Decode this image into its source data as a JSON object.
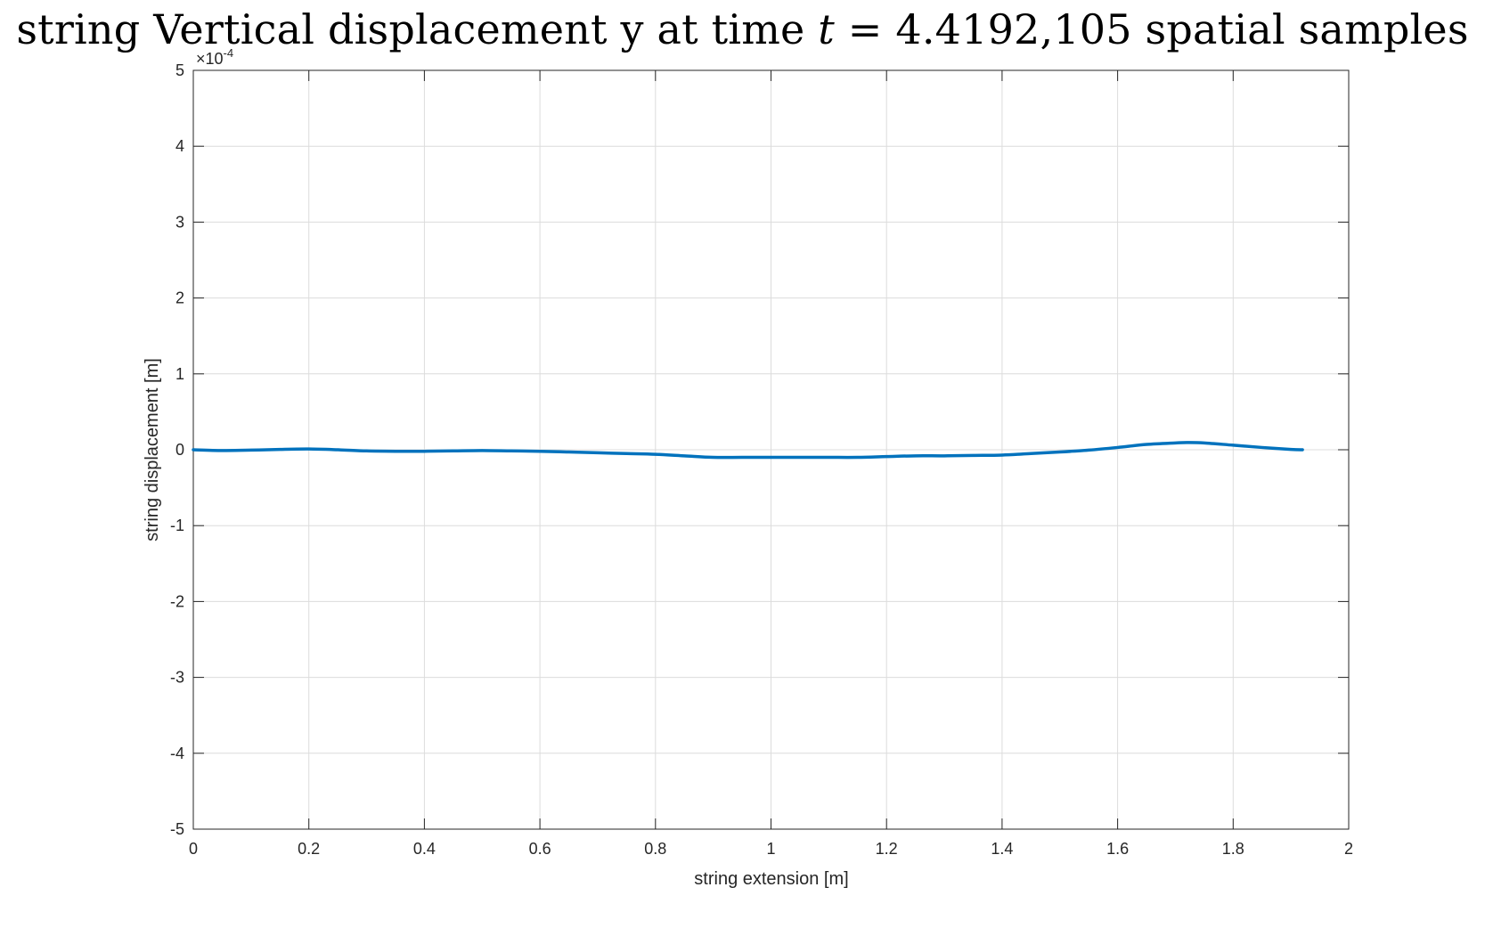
{
  "title": {
    "prefix": "string Vertical displacement y at time ",
    "variable": "t",
    "equals": " = ",
    "suffix": "4.4192,105 spatial samples"
  },
  "chart_data": {
    "type": "line",
    "xlabel": "string extension [m]",
    "ylabel": "string displacement [m]",
    "exponent_base": "×10",
    "exponent_power": "-4",
    "xlim": [
      0,
      2
    ],
    "ylim": [
      -5,
      5
    ],
    "y_scale_factor": 0.0001,
    "x_ticks": [
      0,
      0.2,
      0.4,
      0.6,
      0.8,
      1,
      1.2,
      1.4,
      1.6,
      1.8,
      2
    ],
    "x_tick_labels": [
      "0",
      "0.2",
      "0.4",
      "0.6",
      "0.8",
      "1",
      "1.2",
      "1.4",
      "1.6",
      "1.8",
      "2"
    ],
    "y_ticks": [
      -5,
      -4,
      -3,
      -2,
      -1,
      0,
      1,
      2,
      3,
      4,
      5
    ],
    "y_tick_labels": [
      "-5",
      "-4",
      "-3",
      "-2",
      "-1",
      "0",
      "1",
      "2",
      "3",
      "4",
      "5"
    ],
    "grid": true,
    "line_color": "#0072BD",
    "series": [
      {
        "x": [
          0,
          0.05,
          0.1,
          0.15,
          0.2,
          0.25,
          0.3,
          0.35,
          0.4,
          0.45,
          0.5,
          0.55,
          0.6,
          0.65,
          0.7,
          0.75,
          0.8,
          0.85,
          0.9,
          0.95,
          1.0,
          1.05,
          1.1,
          1.15,
          1.2,
          1.25,
          1.3,
          1.35,
          1.4,
          1.45,
          1.5,
          1.55,
          1.6,
          1.65,
          1.7,
          1.72,
          1.75,
          1.8,
          1.85,
          1.9,
          1.92
        ],
        "y": [
          0.0,
          -0.01,
          -0.005,
          0.005,
          0.01,
          0.0,
          -0.015,
          -0.02,
          -0.02,
          -0.015,
          -0.01,
          -0.015,
          -0.02,
          -0.03,
          -0.04,
          -0.05,
          -0.06,
          -0.08,
          -0.1,
          -0.1,
          -0.1,
          -0.1,
          -0.1,
          -0.1,
          -0.09,
          -0.08,
          -0.08,
          -0.075,
          -0.07,
          -0.05,
          -0.03,
          -0.005,
          0.03,
          0.07,
          0.09,
          0.095,
          0.09,
          0.06,
          0.03,
          0.005,
          0.0
        ]
      }
    ]
  }
}
